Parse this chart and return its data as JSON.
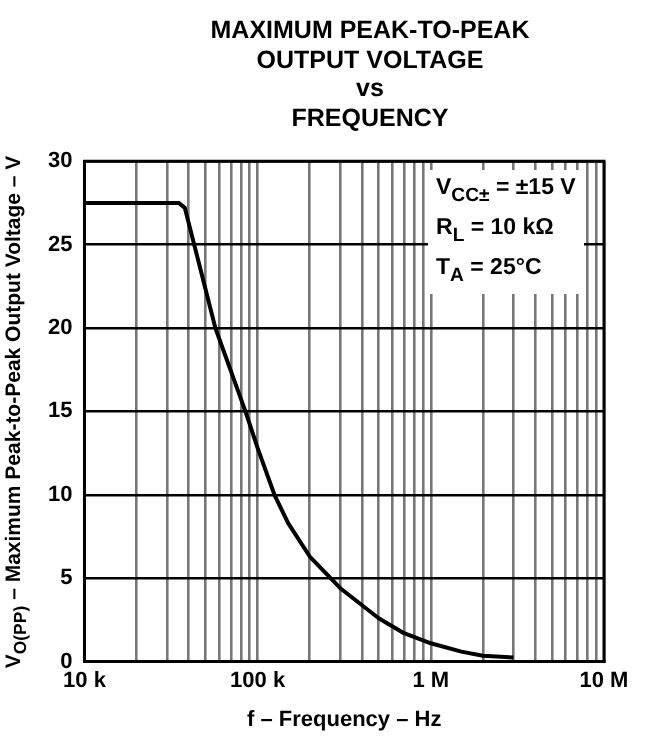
{
  "chart_data": {
    "type": "line",
    "title": "MAXIMUM PEAK-TO-PEAK\nOUTPUT VOLTAGE\nvs\nFREQUENCY",
    "xlabel": "f – Frequency – Hz",
    "ylabel": "V$_{O(PP)}$ – Maximum Peak-to-Peak Output Voltage – V",
    "annotations": [
      "V$_{CC±}$ = ±15 V",
      "R$_{L}$ = 10 kΩ",
      "T$_{A}$ = 25°C"
    ],
    "log": "x",
    "grid": true,
    "legend": false,
    "marker": "none",
    "line_style": "solid",
    "xlim": [
      10000,
      10000000
    ],
    "ylim": [
      0,
      30
    ],
    "xticks": [
      {
        "value": 10000,
        "label": "10 k"
      },
      {
        "value": 20000,
        "label": null
      },
      {
        "value": 30000,
        "label": null
      },
      {
        "value": 40000,
        "label": null
      },
      {
        "value": 50000,
        "label": null
      },
      {
        "value": 60000,
        "label": null
      },
      {
        "value": 70000,
        "label": null
      },
      {
        "value": 80000,
        "label": null
      },
      {
        "value": 90000,
        "label": null
      },
      {
        "value": 100000,
        "label": "100 k"
      },
      {
        "value": 200000,
        "label": null
      },
      {
        "value": 300000,
        "label": null
      },
      {
        "value": 400000,
        "label": null
      },
      {
        "value": 500000,
        "label": null
      },
      {
        "value": 600000,
        "label": null
      },
      {
        "value": 700000,
        "label": null
      },
      {
        "value": 800000,
        "label": null
      },
      {
        "value": 900000,
        "label": null
      },
      {
        "value": 1000000,
        "label": "1 M"
      },
      {
        "value": 2000000,
        "label": null
      },
      {
        "value": 3000000,
        "label": null
      },
      {
        "value": 4000000,
        "label": null
      },
      {
        "value": 5000000,
        "label": null
      },
      {
        "value": 6000000,
        "label": null
      },
      {
        "value": 7000000,
        "label": null
      },
      {
        "value": 8000000,
        "label": null
      },
      {
        "value": 9000000,
        "label": null
      },
      {
        "value": 10000000,
        "label": "10 M"
      }
    ],
    "yticks": [
      0,
      5,
      10,
      15,
      20,
      25,
      30
    ],
    "series": [
      {
        "color": "#000000",
        "x": [
          10000,
          35000,
          38000,
          57000,
          85000,
          100000,
          125000,
          150000,
          200000,
          300000,
          500000,
          700000,
          1000000,
          1500000,
          2000000,
          3000000
        ],
        "values": [
          27.5,
          27.5,
          27.2,
          20,
          15,
          12.8,
          10,
          8.3,
          6.3,
          4.4,
          2.6,
          1.7,
          1.1,
          0.6,
          0.35,
          0.25
        ]
      }
    ]
  }
}
